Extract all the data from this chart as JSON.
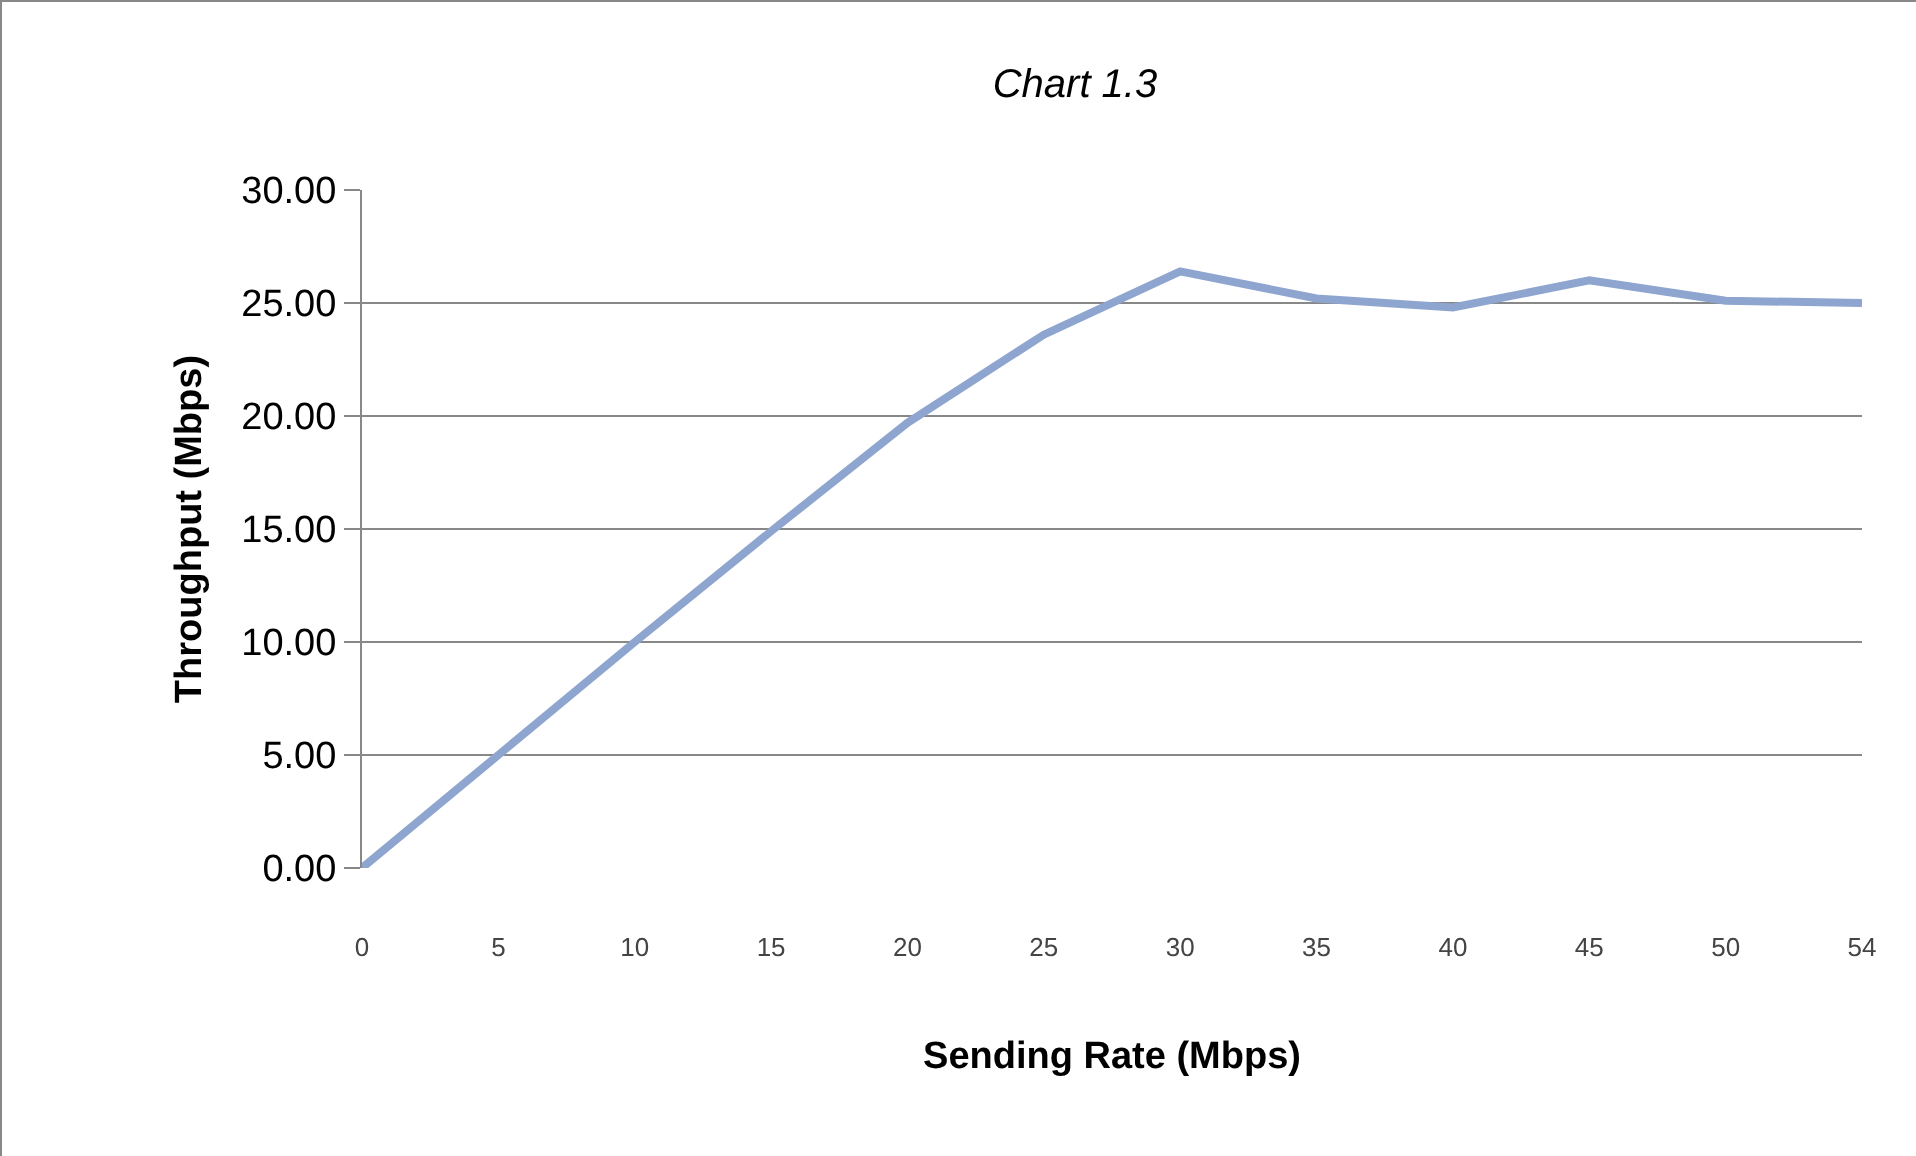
{
  "chart_data": {
    "type": "line",
    "title": "Chart 1.3",
    "xlabel": "Sending Rate (Mbps)",
    "ylabel": "Throughput (Mbps)",
    "categories": [
      "0",
      "5",
      "10",
      "15",
      "20",
      "25",
      "30",
      "35",
      "40",
      "45",
      "50",
      "54"
    ],
    "series": [
      {
        "color": "#8ea5cf",
        "values": [
          0,
          5.0,
          10.0,
          14.9,
          19.7,
          23.6,
          26.4,
          25.2,
          24.8,
          26.0,
          25.1,
          25.0
        ]
      }
    ],
    "ylim": [
      0,
      30
    ],
    "yticks": [
      {
        "value": 0,
        "label": "0.00"
      },
      {
        "value": 5,
        "label": "5.00"
      },
      {
        "value": 10,
        "label": "10.00"
      },
      {
        "value": 15,
        "label": "15.00"
      },
      {
        "value": 20,
        "label": "20.00"
      },
      {
        "value": 25,
        "label": "25.00"
      },
      {
        "value": 30,
        "label": "30.00"
      }
    ],
    "grid": "y",
    "legend": false,
    "marker": "none",
    "line_style": "solid"
  }
}
